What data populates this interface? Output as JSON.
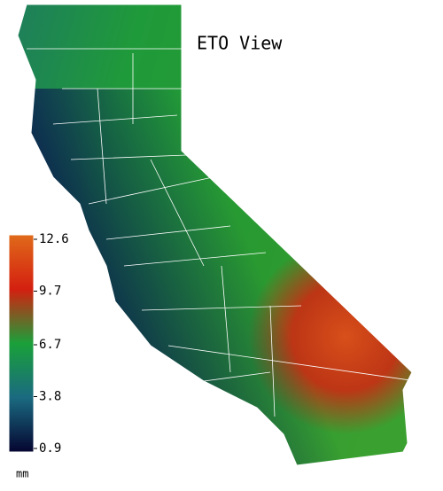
{
  "title": "ETO View",
  "legend": {
    "unit": "mm",
    "ticks": [
      12.6,
      9.7,
      6.7,
      3.8,
      0.9
    ]
  }
}
